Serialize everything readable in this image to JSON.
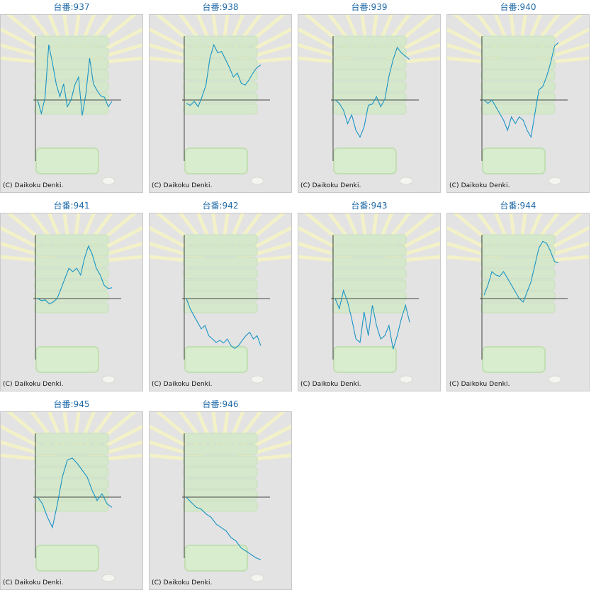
{
  "page": {
    "copyright": "(C) Daikoku Denki.",
    "line_color": "#1a94c4",
    "title_color": "#1f6aa8"
  },
  "chart_data": [
    {
      "type": "line",
      "title": "台番:937",
      "series": [
        {
          "values": [
            0,
            -20,
            3,
            82,
            55,
            24,
            5,
            24,
            -10,
            0,
            22,
            34,
            -23,
            10,
            62,
            24,
            14,
            6,
            4,
            -10,
            -2
          ]
        }
      ]
    },
    {
      "type": "line",
      "title": "台番:938",
      "series": [
        {
          "values": [
            -5,
            -8,
            -2,
            -10,
            5,
            22,
            62,
            82,
            70,
            72,
            60,
            48,
            34,
            40,
            25,
            22,
            30,
            40,
            48,
            52
          ]
        }
      ]
    },
    {
      "type": "line",
      "title": "台番:939",
      "series": [
        {
          "values": [
            0,
            -5,
            -15,
            -35,
            -22,
            -45,
            -55,
            -40,
            -8,
            -6,
            5,
            -10,
            1,
            35,
            60,
            78,
            70,
            65,
            60
          ]
        }
      ]
    },
    {
      "type": "line",
      "title": "台番:940",
      "series": [
        {
          "values": [
            0,
            -5,
            0,
            -10,
            -20,
            -30,
            -45,
            -25,
            -35,
            -25,
            -30,
            -45,
            -55,
            -20,
            15,
            20,
            35,
            55,
            80,
            85
          ]
        }
      ]
    },
    {
      "type": "line",
      "title": "台番:941",
      "series": [
        {
          "values": [
            0,
            -3,
            -2,
            -8,
            -5,
            0,
            15,
            30,
            45,
            40,
            45,
            35,
            60,
            78,
            65,
            45,
            35,
            20,
            15,
            16
          ]
        }
      ]
    },
    {
      "type": "line",
      "title": "台番:942",
      "series": [
        {
          "values": [
            0,
            -15,
            -25,
            -35,
            -45,
            -40,
            -55,
            -60,
            -65,
            -62,
            -66,
            -60,
            -70,
            -74,
            -70,
            -62,
            -55,
            -50,
            -60,
            -55,
            -70
          ]
        }
      ]
    },
    {
      "type": "line",
      "title": "台番:943",
      "series": [
        {
          "values": [
            0,
            -15,
            12,
            -5,
            -30,
            -60,
            -65,
            -20,
            -55,
            -10,
            -40,
            -60,
            -55,
            -40,
            -75,
            -55,
            -30,
            -10,
            -35
          ]
        }
      ]
    },
    {
      "type": "line",
      "title": "台番:944",
      "series": [
        {
          "values": [
            5,
            20,
            40,
            35,
            33,
            40,
            30,
            20,
            10,
            0,
            -5,
            10,
            25,
            50,
            75,
            85,
            82,
            70,
            55,
            53
          ]
        }
      ]
    },
    {
      "type": "line",
      "title": "台番:945",
      "series": [
        {
          "values": [
            0,
            -10,
            -30,
            -45,
            -10,
            30,
            55,
            58,
            50,
            40,
            30,
            10,
            -5,
            5,
            -10,
            -15
          ]
        }
      ]
    },
    {
      "type": "line",
      "title": "台番:946",
      "series": [
        {
          "values": [
            0,
            -8,
            -15,
            -18,
            -25,
            -30,
            -40,
            -45,
            -50,
            -60,
            -65,
            -75,
            -80,
            -85,
            -90,
            -93
          ]
        }
      ]
    }
  ]
}
